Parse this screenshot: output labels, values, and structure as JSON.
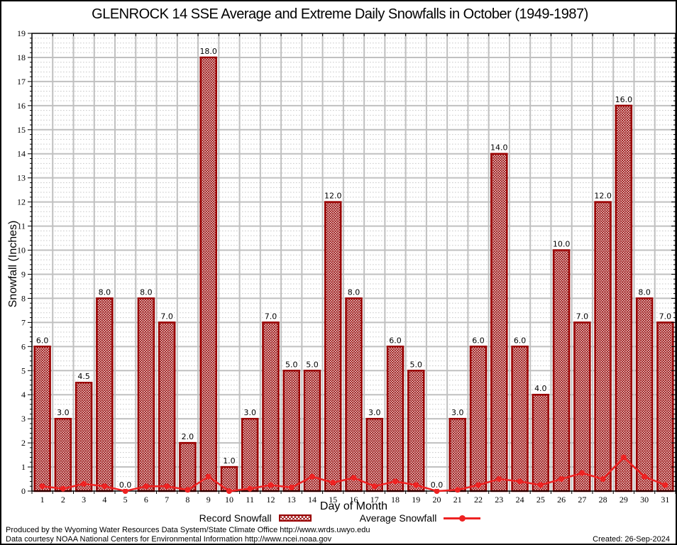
{
  "title": "GLENROCK 14 SSE Average and Extreme Daily Snowfalls in October (1949-1987)",
  "chart_data": {
    "type": "bar",
    "title": "GLENROCK 14 SSE Average and Extreme Daily Snowfalls in October (1949-1987)",
    "xlabel": "Day of Month",
    "ylabel": "Snowfall (Inches)",
    "ylim": [
      0,
      19
    ],
    "ytick_step": 1,
    "grid": true,
    "legend_position": "bottom",
    "categories": [
      1,
      2,
      3,
      4,
      5,
      6,
      7,
      8,
      9,
      10,
      11,
      12,
      13,
      14,
      15,
      16,
      17,
      18,
      19,
      20,
      21,
      22,
      23,
      24,
      25,
      26,
      27,
      28,
      29,
      30,
      31
    ],
    "series": [
      {
        "name": "Record Snowfall",
        "type": "bar",
        "values": [
          6.0,
          3.0,
          4.5,
          8.0,
          0.0,
          8.0,
          7.0,
          2.0,
          18.0,
          1.0,
          3.0,
          7.0,
          5.0,
          5.0,
          12.0,
          8.0,
          3.0,
          6.0,
          5.0,
          0.0,
          3.0,
          6.0,
          14.0,
          6.0,
          4.0,
          10.0,
          7.0,
          12.0,
          16.0,
          8.0,
          7.0
        ],
        "value_labels": [
          "6.0",
          "3.0",
          "4.5",
          "8.0",
          "0.0",
          "8.0",
          "7.0",
          "2.0",
          "18.0",
          "1.0",
          "3.0",
          "7.0",
          "5.0",
          "5.0",
          "12.0",
          "8.0",
          "3.0",
          "6.0",
          "5.0",
          "0.0",
          "3.0",
          "6.0",
          "14.0",
          "6.0",
          "4.0",
          "10.0",
          "7.0",
          "12.0",
          "16.0",
          "8.0",
          "7.0"
        ],
        "color": "#990000"
      },
      {
        "name": "Average Snowfall",
        "type": "line",
        "values": [
          0.2,
          0.1,
          0.3,
          0.2,
          0.0,
          0.2,
          0.2,
          0.05,
          0.6,
          0.0,
          0.1,
          0.25,
          0.15,
          0.6,
          0.35,
          0.55,
          0.2,
          0.4,
          0.25,
          0.0,
          0.05,
          0.25,
          0.5,
          0.4,
          0.25,
          0.5,
          0.75,
          0.5,
          1.4,
          0.6,
          0.25
        ],
        "color": "#ee2222"
      }
    ]
  },
  "colors": {
    "bar_border": "#990000",
    "bar_hatch": "#9b1111",
    "line": "#ee2222",
    "grid_major": "#c0c0c0",
    "grid_minor": "#c9c9c9",
    "frame": "#000000"
  },
  "footer": {
    "line1": "Produced by the Wyoming Water Resources Data System/State Climate Office http://www.wrds.uwyo.edu",
    "line2": "Data courtesy NOAA National Centers for Environmental Information http://www.ncei.noaa.gov",
    "created": "Created: 26-Sep-2024"
  }
}
